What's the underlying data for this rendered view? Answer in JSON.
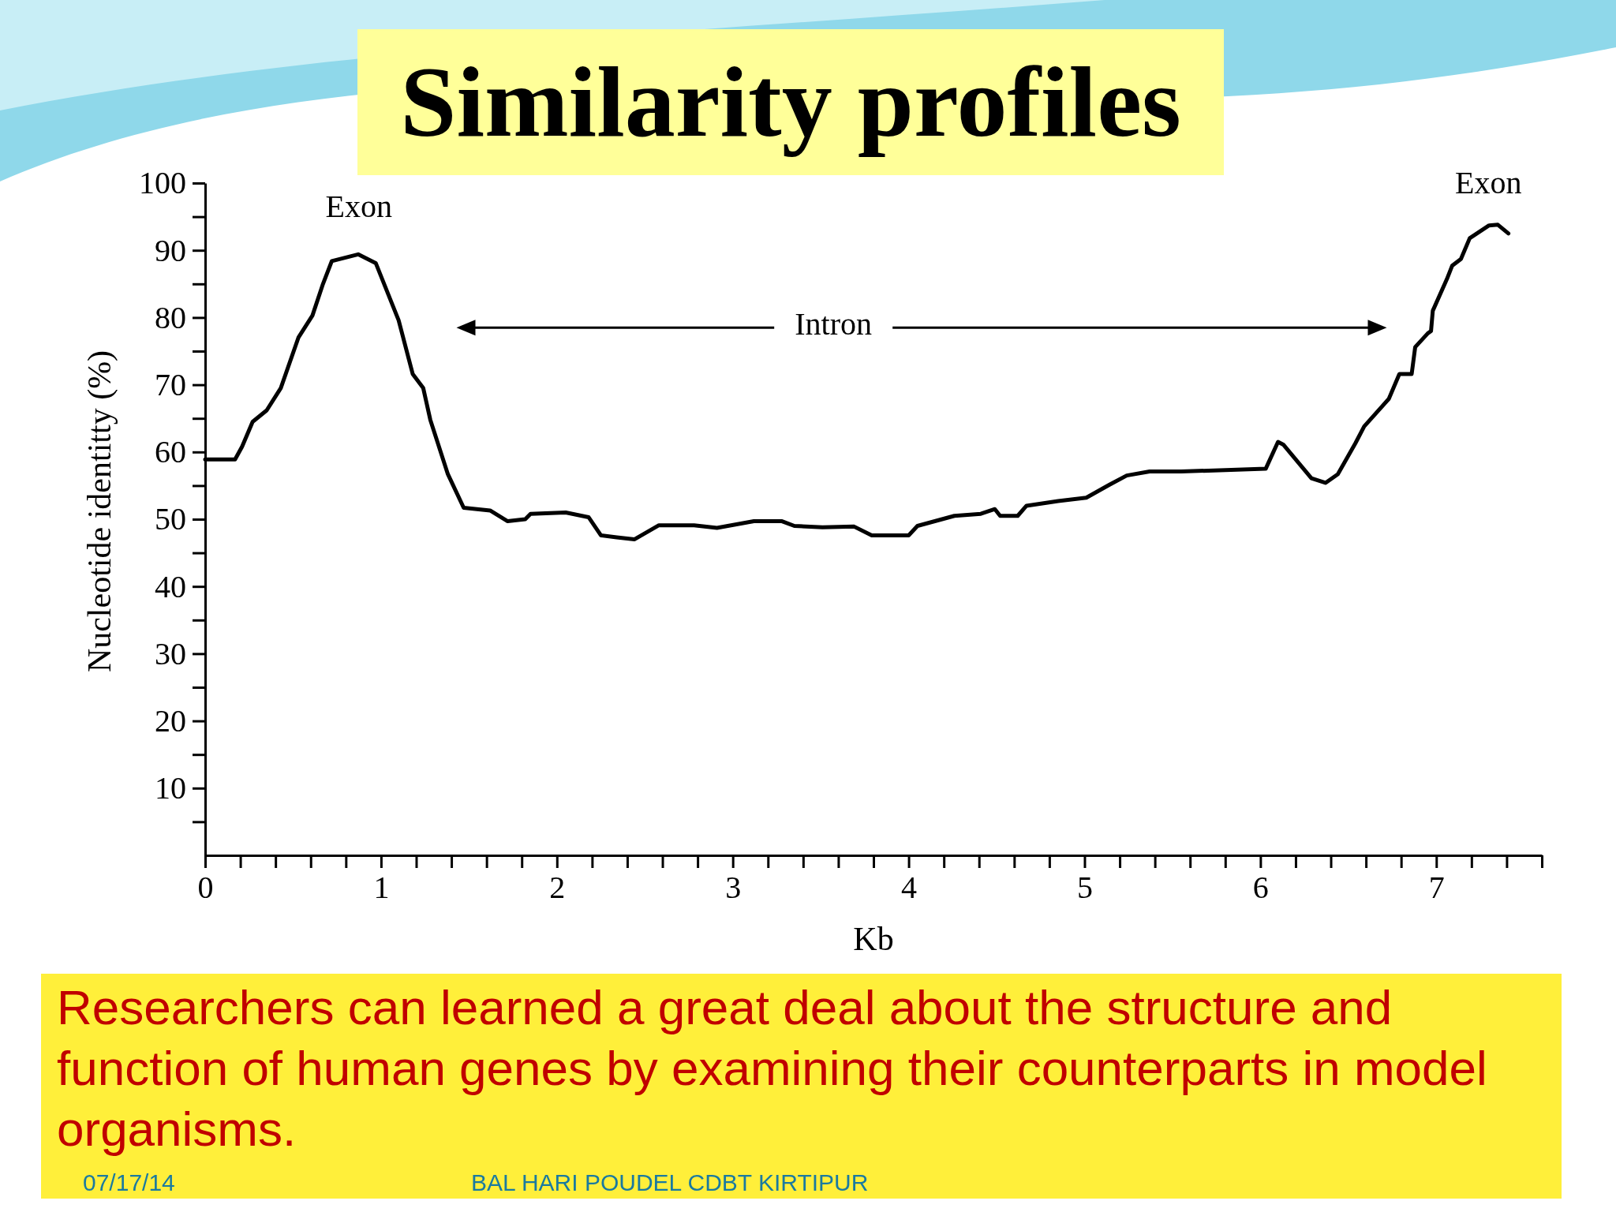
{
  "chart_data": {
    "type": "line",
    "title": "Similarity profiles",
    "xlabel": "Kb",
    "ylabel": "Nucleotide identitty (%)",
    "xlim": [
      0,
      7.6
    ],
    "ylim": [
      0,
      100
    ],
    "xticks": [
      0,
      {
        "value": 0.2,
        "label": null
      },
      {
        "value": 0.4,
        "label": null
      },
      {
        "value": 0.6,
        "label": null
      },
      {
        "value": 0.8,
        "label": null
      },
      1,
      {
        "value": 1.2,
        "label": null
      },
      {
        "value": 1.4,
        "label": null
      },
      {
        "value": 1.6,
        "label": null
      },
      {
        "value": 1.8,
        "label": null
      },
      2,
      {
        "value": 2.2,
        "label": null
      },
      {
        "value": 2.4,
        "label": null
      },
      {
        "value": 2.6,
        "label": null
      },
      {
        "value": 2.8,
        "label": null
      },
      3,
      {
        "value": 3.2,
        "label": null
      },
      {
        "value": 3.4,
        "label": null
      },
      {
        "value": 3.6,
        "label": null
      },
      {
        "value": 3.8,
        "label": null
      },
      4,
      {
        "value": 4.2,
        "label": null
      },
      {
        "value": 4.4,
        "label": null
      },
      {
        "value": 4.6,
        "label": null
      },
      {
        "value": 4.8,
        "label": null
      },
      5,
      {
        "value": 5.2,
        "label": null
      },
      {
        "value": 5.4,
        "label": null
      },
      {
        "value": 5.6,
        "label": null
      },
      {
        "value": 5.8,
        "label": null
      },
      6,
      {
        "value": 6.2,
        "label": null
      },
      {
        "value": 6.4,
        "label": null
      },
      {
        "value": 6.6,
        "label": null
      },
      {
        "value": 6.8,
        "label": null
      },
      7,
      {
        "value": 7.2,
        "label": null
      },
      {
        "value": 7.4,
        "label": null
      },
      {
        "value": 7.6,
        "label": null
      }
    ],
    "yticks": [
      {
        "value": 5,
        "label": null
      },
      10,
      {
        "value": 15,
        "label": null
      },
      20,
      {
        "value": 25,
        "label": null
      },
      30,
      {
        "value": 35,
        "label": null
      },
      40,
      {
        "value": 45,
        "label": null
      },
      50,
      {
        "value": 55,
        "label": null
      },
      60,
      {
        "value": 65,
        "label": null
      },
      70,
      {
        "value": 75,
        "label": null
      },
      80,
      {
        "value": 85,
        "label": null
      },
      90,
      {
        "value": 95,
        "label": null
      },
      100
    ],
    "grid": false,
    "marker": "none",
    "line_style": "solid",
    "series": [
      {
        "color": "#000000",
        "x": [
          0,
          0.17,
          0.21,
          0.27,
          0.35,
          0.43,
          0.53,
          0.61,
          0.67,
          0.72,
          0.87,
          0.97,
          1.1,
          1.18,
          1.24,
          1.28,
          1.38,
          1.47,
          1.62,
          1.72,
          1.82,
          1.85,
          2.05,
          2.18,
          2.25,
          2.34,
          2.44,
          2.58,
          2.78,
          2.91,
          3.12,
          3.28,
          3.35,
          3.51,
          3.69,
          3.79,
          4.0,
          4.05,
          4.26,
          4.41,
          4.49,
          4.52,
          4.62,
          4.67,
          4.85,
          5.01,
          5.14,
          5.24,
          5.37,
          5.55,
          6.03,
          6.1,
          6.13,
          6.29,
          6.37,
          6.44,
          6.54,
          6.59,
          6.73,
          6.79,
          6.86,
          6.88,
          6.95,
          6.97,
          6.98,
          7.06,
          7.09,
          7.14,
          7.19,
          7.3,
          7.35,
          7.41
        ],
        "values": [
          58.9,
          58.9,
          60.8,
          64.5,
          66.2,
          69.5,
          77.0,
          80.3,
          85.0,
          88.4,
          89.4,
          88.1,
          79.6,
          71.6,
          69.5,
          64.8,
          56.7,
          51.7,
          51.3,
          49.7,
          50.0,
          50.8,
          51.0,
          50.3,
          47.6,
          47.3,
          47.0,
          49.1,
          49.1,
          48.7,
          49.7,
          49.7,
          49.0,
          48.8,
          48.9,
          47.6,
          47.6,
          49.0,
          50.5,
          50.8,
          51.5,
          50.5,
          50.5,
          52.0,
          52.7,
          53.2,
          55.1,
          56.5,
          57.1,
          57.1,
          57.5,
          61.5,
          61.1,
          56.1,
          55.4,
          56.7,
          61.3,
          63.8,
          67.9,
          71.6,
          71.6,
          75.6,
          77.6,
          78.0,
          81.0,
          85.7,
          87.7,
          88.7,
          91.8,
          93.7,
          93.8,
          92.5
        ]
      }
    ],
    "annotations": [
      "Exon",
      "Intron",
      "Exon",
      "Researchers can learned a great deal about the structure and function of human genes by examining their counterparts in model organisms.",
      "07/17/14",
      "BAL HARI POUDEL CDBT KIRTIPUR"
    ]
  }
}
